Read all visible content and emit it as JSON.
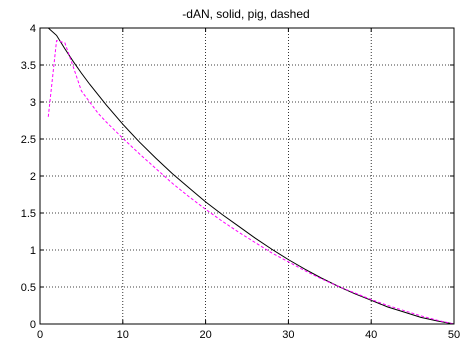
{
  "chart_data": {
    "type": "line",
    "title": "-dAN, solid, pig, dashed",
    "xlabel": "",
    "ylabel": "",
    "xlim": [
      0,
      50
    ],
    "ylim": [
      0,
      4
    ],
    "xticks": [
      0,
      10,
      20,
      30,
      40,
      50
    ],
    "yticks": [
      0,
      0.5,
      1,
      1.5,
      2,
      2.5,
      3,
      3.5,
      4
    ],
    "xtick_labels": [
      "0",
      "10",
      "20",
      "30",
      "40",
      "50"
    ],
    "ytick_labels": [
      "0",
      "0.5",
      "1",
      "1.5",
      "2",
      "2.5",
      "3",
      "3.5",
      "4"
    ],
    "grid": true,
    "series": [
      {
        "color": "#000000",
        "style": "solid",
        "x": [
          1,
          2,
          3,
          4,
          5,
          6,
          7,
          8,
          9,
          10,
          12,
          14,
          16,
          18,
          20,
          22,
          24,
          26,
          28,
          30,
          32,
          34,
          36,
          38,
          40,
          42,
          44,
          46,
          48,
          50
        ],
        "y": [
          4.05,
          3.9,
          3.72,
          3.55,
          3.39,
          3.24,
          3.1,
          2.96,
          2.83,
          2.7,
          2.46,
          2.24,
          2.03,
          1.84,
          1.65,
          1.48,
          1.32,
          1.16,
          1.01,
          0.87,
          0.74,
          0.62,
          0.51,
          0.41,
          0.32,
          0.23,
          0.16,
          0.09,
          0.04,
          0.0
        ]
      },
      {
        "color": "#ff00ff",
        "style": "dashed",
        "x": [
          1,
          2,
          3,
          4,
          5,
          6,
          7,
          8,
          9,
          10,
          12,
          14,
          16,
          18,
          20,
          22,
          24,
          26,
          28,
          30,
          32,
          34,
          36,
          38,
          40,
          42,
          44,
          46,
          48,
          50
        ],
        "y": [
          2.8,
          3.83,
          3.8,
          3.48,
          3.15,
          3.0,
          2.85,
          2.73,
          2.62,
          2.51,
          2.3,
          2.1,
          1.9,
          1.72,
          1.55,
          1.39,
          1.24,
          1.1,
          0.96,
          0.84,
          0.72,
          0.61,
          0.51,
          0.42,
          0.33,
          0.25,
          0.18,
          0.11,
          0.05,
          0.0
        ]
      }
    ]
  }
}
